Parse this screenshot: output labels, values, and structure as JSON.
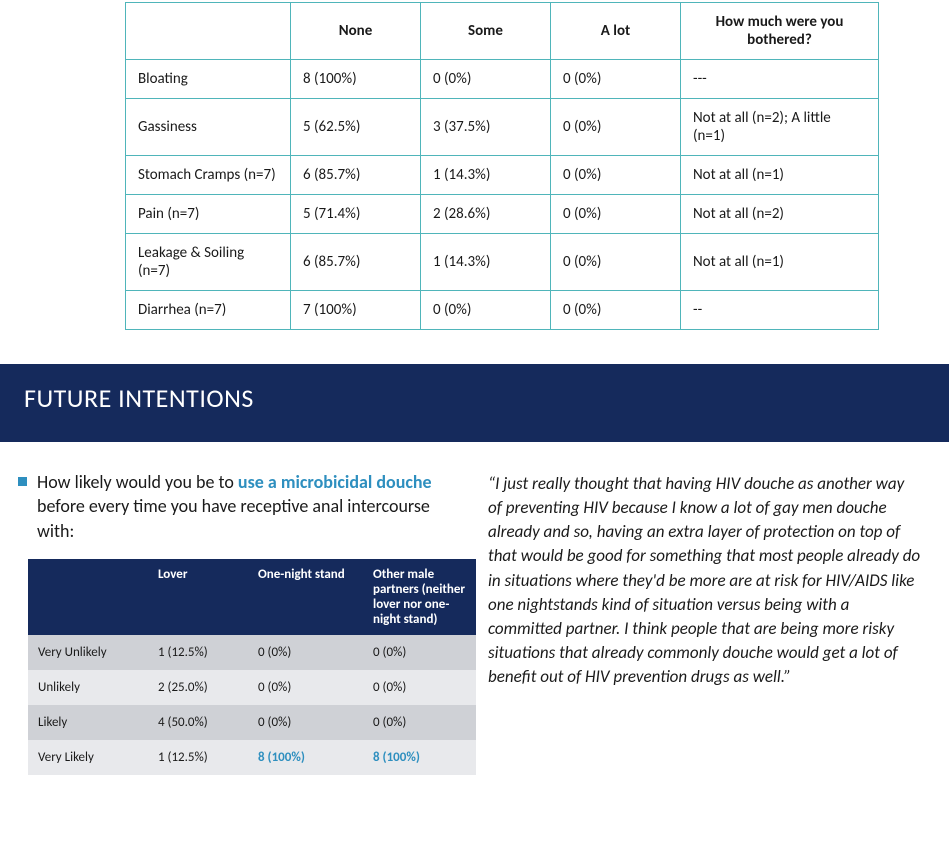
{
  "symptomTable": {
    "headers": [
      "",
      "None",
      "Some",
      "A lot",
      "How much were you bothered?"
    ],
    "rows": [
      {
        "label": "Bloating",
        "none": "8 (100%)",
        "some": "0 (0%)",
        "alot": "0 (0%)",
        "bothered": "---"
      },
      {
        "label": "Gassiness",
        "none": "5 (62.5%)",
        "some": "3 (37.5%)",
        "alot": "0 (0%)",
        "bothered": "Not at all (n=2); A little (n=1)"
      },
      {
        "label": "Stomach Cramps (n=7)",
        "none": "6 (85.7%)",
        "some": "1 (14.3%)",
        "alot": "0 (0%)",
        "bothered": "Not at all (n=1)"
      },
      {
        "label": "Pain (n=7)",
        "none": "5 (71.4%)",
        "some": "2 (28.6%)",
        "alot": "0 (0%)",
        "bothered": "Not at all (n=2)"
      },
      {
        "label": "Leakage & Soiling (n=7)",
        "none": "6 (85.7%)",
        "some": "1 (14.3%)",
        "alot": "0 (0%)",
        "bothered": "Not at all (n=1)"
      },
      {
        "label": "Diarrhea  (n=7)",
        "none": "7 (100%)",
        "some": "0 (0%)",
        "alot": "0 (0%)",
        "bothered": "--"
      }
    ],
    "border_color": "#4fb5ba",
    "header_fontweight": 700
  },
  "banner": {
    "text": "FUTURE INTENTIONS",
    "bg": "#152a5c",
    "color": "#ffffff"
  },
  "bullet": {
    "pre": "How likely would you be to ",
    "highlight": "use a microbicidal douche",
    "post": " before every time you have receptive anal intercourse with:",
    "square_color": "#2e8fbf",
    "highlight_color": "#2e8fbf"
  },
  "intentionsTable": {
    "header_bg": "#152a5c",
    "header_color": "#ffffff",
    "row_odd_bg": "#cfd1d6",
    "row_even_bg": "#e8e9ec",
    "bold_color": "#2e8fbf",
    "headers": [
      "",
      "Lover",
      "One-night stand",
      "Other male partners (neither lover nor one-night stand)"
    ],
    "rows": [
      {
        "label": "Very Unlikely",
        "lover": "1 (12.5%)",
        "ons": "0 (0%)",
        "other": "0 (0%)",
        "bold_ons": false,
        "bold_other": false
      },
      {
        "label": "Unlikely",
        "lover": "2 (25.0%)",
        "ons": "0 (0%)",
        "other": "0 (0%)",
        "bold_ons": false,
        "bold_other": false
      },
      {
        "label": "Likely",
        "lover": "4 (50.0%)",
        "ons": "0 (0%)",
        "other": "0 (0%)",
        "bold_ons": false,
        "bold_other": false
      },
      {
        "label": "Very Likely",
        "lover": "1 (12.5%)",
        "ons": "8 (100%)",
        "other": "8 (100%)",
        "bold_ons": true,
        "bold_other": true
      }
    ]
  },
  "quote": "“I just really thought that having HIV douche as another way of preventing HIV because I know a lot of gay men douche already and so, having an extra layer of protection on top of that would be good for something that most people already do in situations where they'd be more are at risk for HIV/AIDS like one nightstands kind of situation versus being with a committed partner. I think people that are being more risky situations that already commonly douche would get a lot of benefit out of HIV prevention drugs as well.”"
}
